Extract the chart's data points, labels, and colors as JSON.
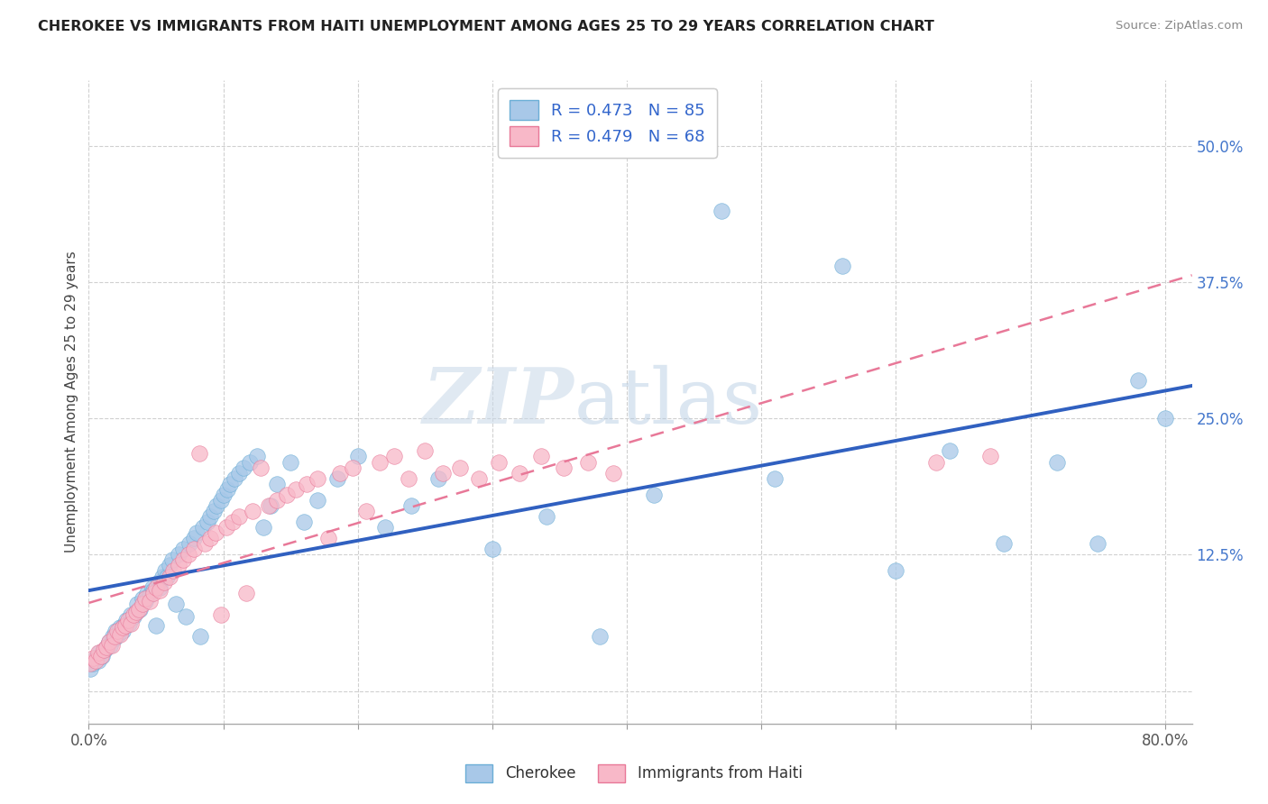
{
  "title": "CHEROKEE VS IMMIGRANTS FROM HAITI UNEMPLOYMENT AMONG AGES 25 TO 29 YEARS CORRELATION CHART",
  "source": "Source: ZipAtlas.com",
  "ylabel": "Unemployment Among Ages 25 to 29 years",
  "xlim": [
    0.0,
    0.82
  ],
  "ylim": [
    -0.03,
    0.56
  ],
  "xticks": [
    0.0,
    0.1,
    0.2,
    0.3,
    0.4,
    0.5,
    0.6,
    0.7,
    0.8
  ],
  "xticklabels_show": [
    "0.0%",
    "80.0%"
  ],
  "ytick_positions": [
    0.0,
    0.125,
    0.25,
    0.375,
    0.5
  ],
  "yticklabels_right": [
    "",
    "12.5%",
    "25.0%",
    "37.5%",
    "50.0%"
  ],
  "cherokee_color": "#a8c8e8",
  "cherokee_edge": "#6baed6",
  "haiti_color": "#f8b8c8",
  "haiti_edge": "#e87898",
  "cherokee_R": 0.473,
  "cherokee_N": 85,
  "haiti_R": 0.479,
  "haiti_N": 68,
  "watermark_zip": "ZIP",
  "watermark_atlas": "atlas",
  "background_color": "#ffffff",
  "grid_color": "#d0d0d0",
  "trend_blue": "#3060c0",
  "trend_pink": "#e87898",
  "cherokee_x": [
    0.001,
    0.003,
    0.005,
    0.007,
    0.008,
    0.01,
    0.012,
    0.013,
    0.015,
    0.016,
    0.018,
    0.019,
    0.02,
    0.022,
    0.023,
    0.025,
    0.026,
    0.028,
    0.03,
    0.031,
    0.033,
    0.035,
    0.036,
    0.038,
    0.04,
    0.042,
    0.043,
    0.045,
    0.047,
    0.048,
    0.05,
    0.052,
    0.053,
    0.055,
    0.057,
    0.058,
    0.06,
    0.062,
    0.065,
    0.067,
    0.07,
    0.072,
    0.075,
    0.078,
    0.08,
    0.083,
    0.085,
    0.088,
    0.09,
    0.093,
    0.095,
    0.098,
    0.1,
    0.103,
    0.105,
    0.108,
    0.112,
    0.115,
    0.12,
    0.125,
    0.13,
    0.135,
    0.14,
    0.15,
    0.16,
    0.17,
    0.185,
    0.2,
    0.22,
    0.24,
    0.26,
    0.3,
    0.34,
    0.38,
    0.42,
    0.47,
    0.51,
    0.56,
    0.6,
    0.64,
    0.68,
    0.72,
    0.75,
    0.78,
    0.8
  ],
  "cherokee_y": [
    0.02,
    0.025,
    0.03,
    0.028,
    0.035,
    0.032,
    0.038,
    0.04,
    0.045,
    0.042,
    0.05,
    0.048,
    0.055,
    0.052,
    0.058,
    0.055,
    0.06,
    0.065,
    0.062,
    0.07,
    0.068,
    0.072,
    0.08,
    0.075,
    0.085,
    0.082,
    0.09,
    0.088,
    0.095,
    0.092,
    0.06,
    0.1,
    0.095,
    0.105,
    0.11,
    0.105,
    0.115,
    0.12,
    0.08,
    0.125,
    0.13,
    0.068,
    0.135,
    0.14,
    0.145,
    0.05,
    0.15,
    0.155,
    0.16,
    0.165,
    0.17,
    0.175,
    0.18,
    0.185,
    0.19,
    0.195,
    0.2,
    0.205,
    0.21,
    0.215,
    0.15,
    0.17,
    0.19,
    0.21,
    0.155,
    0.175,
    0.195,
    0.215,
    0.15,
    0.17,
    0.195,
    0.13,
    0.16,
    0.05,
    0.18,
    0.44,
    0.195,
    0.39,
    0.11,
    0.22,
    0.135,
    0.21,
    0.135,
    0.285,
    0.25
  ],
  "haiti_x": [
    0.001,
    0.003,
    0.005,
    0.007,
    0.009,
    0.011,
    0.013,
    0.015,
    0.017,
    0.019,
    0.021,
    0.023,
    0.025,
    0.027,
    0.029,
    0.031,
    0.033,
    0.035,
    0.037,
    0.04,
    0.042,
    0.045,
    0.048,
    0.05,
    0.053,
    0.056,
    0.06,
    0.063,
    0.067,
    0.07,
    0.074,
    0.078,
    0.082,
    0.086,
    0.09,
    0.094,
    0.098,
    0.102,
    0.107,
    0.112,
    0.117,
    0.122,
    0.128,
    0.134,
    0.14,
    0.147,
    0.154,
    0.162,
    0.17,
    0.178,
    0.187,
    0.196,
    0.206,
    0.216,
    0.227,
    0.238,
    0.25,
    0.263,
    0.276,
    0.29,
    0.305,
    0.32,
    0.336,
    0.353,
    0.371,
    0.39,
    0.63,
    0.67
  ],
  "haiti_y": [
    0.025,
    0.03,
    0.028,
    0.035,
    0.032,
    0.038,
    0.04,
    0.045,
    0.042,
    0.05,
    0.055,
    0.052,
    0.058,
    0.06,
    0.065,
    0.062,
    0.07,
    0.072,
    0.075,
    0.08,
    0.085,
    0.082,
    0.09,
    0.095,
    0.092,
    0.1,
    0.105,
    0.11,
    0.115,
    0.12,
    0.125,
    0.13,
    0.218,
    0.135,
    0.14,
    0.145,
    0.07,
    0.15,
    0.155,
    0.16,
    0.09,
    0.165,
    0.205,
    0.17,
    0.175,
    0.18,
    0.185,
    0.19,
    0.195,
    0.14,
    0.2,
    0.205,
    0.165,
    0.21,
    0.215,
    0.195,
    0.22,
    0.2,
    0.205,
    0.195,
    0.21,
    0.2,
    0.215,
    0.205,
    0.21,
    0.2,
    0.21,
    0.215
  ]
}
